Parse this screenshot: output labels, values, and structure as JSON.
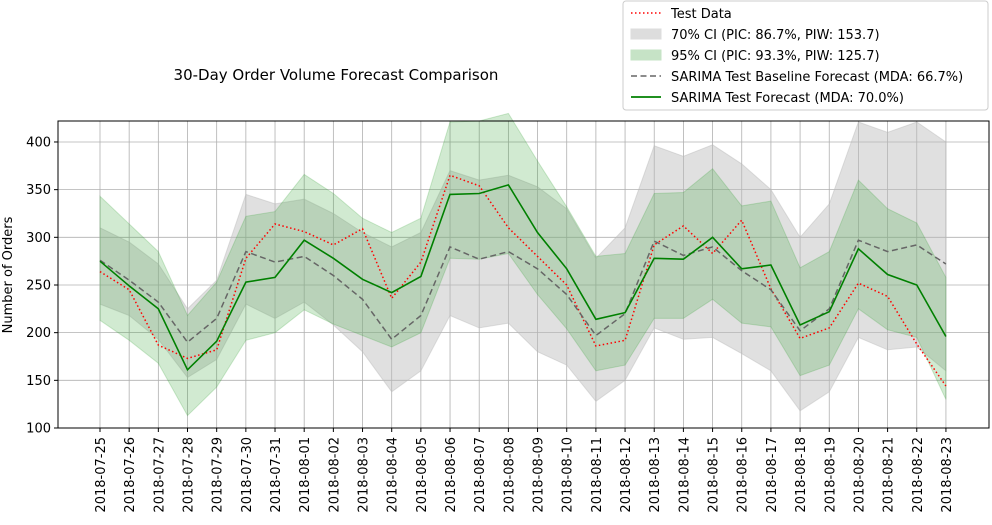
{
  "chart_data": {
    "type": "line",
    "title": "30-Day Order Volume Forecast Comparison",
    "xlabel": "",
    "ylabel": "Number of Orders",
    "ylim": [
      100,
      422
    ],
    "yticks": [
      100,
      150,
      200,
      250,
      300,
      350,
      400
    ],
    "grid": true,
    "legend_position": "top-right",
    "categories": [
      "2018-07-25",
      "2018-07-26",
      "2018-07-27",
      "2018-07-28",
      "2018-07-29",
      "2018-07-30",
      "2018-07-31",
      "2018-08-01",
      "2018-08-02",
      "2018-08-03",
      "2018-08-04",
      "2018-08-05",
      "2018-08-06",
      "2018-08-07",
      "2018-08-08",
      "2018-08-09",
      "2018-08-10",
      "2018-08-11",
      "2018-08-12",
      "2018-08-13",
      "2018-08-14",
      "2018-08-15",
      "2018-08-16",
      "2018-08-17",
      "2018-08-18",
      "2018-08-19",
      "2018-08-20",
      "2018-08-21",
      "2018-08-22",
      "2018-08-23"
    ],
    "series": [
      {
        "name": "Test Data",
        "color": "#ff0000",
        "style": "dotted",
        "values": [
          264,
          245,
          187,
          173,
          182,
          278,
          314,
          306,
          292,
          309,
          236,
          274,
          365,
          354,
          310,
          280,
          250,
          186,
          192,
          292,
          312,
          283,
          318,
          246,
          194,
          205,
          252,
          238,
          188,
          144
        ]
      },
      {
        "name": "SARIMA Test Baseline Forecast (MDA: 66.7%)",
        "color": "#666666",
        "style": "dashed",
        "values": [
          276,
          255,
          232,
          190,
          215,
          285,
          274,
          280,
          260,
          235,
          193,
          218,
          290,
          277,
          285,
          267,
          240,
          197,
          220,
          296,
          281,
          290,
          265,
          245,
          202,
          225,
          297,
          285,
          292,
          272
        ]
      },
      {
        "name": "SARIMA Test Forecast (MDA: 70.0%)",
        "color": "#008000",
        "style": "solid",
        "values": [
          275,
          249,
          225,
          161,
          191,
          253,
          258,
          297,
          278,
          256,
          242,
          259,
          345,
          346,
          355,
          305,
          267,
          214,
          221,
          278,
          277,
          300,
          267,
          271,
          208,
          222,
          288,
          261,
          250,
          196
        ]
      }
    ],
    "bands": [
      {
        "name": "70% CI (PIC: 86.7%, PIW: 153.7)",
        "color": "#bbbbbb",
        "opacity": 0.45,
        "lower": [
          230,
          218,
          193,
          153,
          172,
          230,
          215,
          232,
          208,
          180,
          138,
          160,
          218,
          205,
          210,
          180,
          166,
          128,
          150,
          205,
          193,
          195,
          178,
          160,
          118,
          138,
          195,
          182,
          185,
          160
        ],
        "upper": [
          310,
          295,
          272,
          225,
          255,
          345,
          335,
          340,
          325,
          305,
          290,
          305,
          370,
          360,
          365,
          353,
          330,
          278,
          310,
          396,
          385,
          397,
          377,
          350,
          300,
          335,
          421,
          410,
          421,
          400
        ]
      },
      {
        "name": "95% CI (PIC: 93.3%, PIW: 125.7)",
        "color": "#2ca02c",
        "opacity": 0.22,
        "lower": [
          213,
          192,
          168,
          113,
          143,
          192,
          200,
          224,
          209,
          197,
          185,
          200,
          278,
          277,
          283,
          240,
          204,
          160,
          166,
          215,
          215,
          235,
          210,
          206,
          155,
          166,
          225,
          203,
          195,
          130
        ]
      },
      {
        "name": "95% CI (PIC: 93.3%, PIW: 125.7)",
        "color": "#2ca02c",
        "opacity": 0.22,
        "upper": [
          343,
          314,
          285,
          218,
          253,
          322,
          327,
          366,
          346,
          320,
          305,
          320,
          421,
          422,
          430,
          380,
          332,
          280,
          283,
          346,
          347,
          372,
          333,
          338,
          268,
          285,
          360,
          330,
          315,
          258
        ]
      }
    ],
    "legend_entries": [
      {
        "label": "Test Data",
        "kind": "dotted",
        "color": "#ff0000"
      },
      {
        "label": "70% CI (PIC: 86.7%, PIW: 153.7)",
        "kind": "patch",
        "color": "#dddddd"
      },
      {
        "label": "95% CI (PIC: 93.3%, PIW: 125.7)",
        "kind": "patch",
        "color": "#c6e3c6"
      },
      {
        "label": "SARIMA Test Baseline Forecast (MDA: 66.7%)",
        "kind": "dashed",
        "color": "#666666"
      },
      {
        "label": "SARIMA Test Forecast (MDA: 70.0%)",
        "kind": "solid",
        "color": "#008000"
      }
    ]
  }
}
